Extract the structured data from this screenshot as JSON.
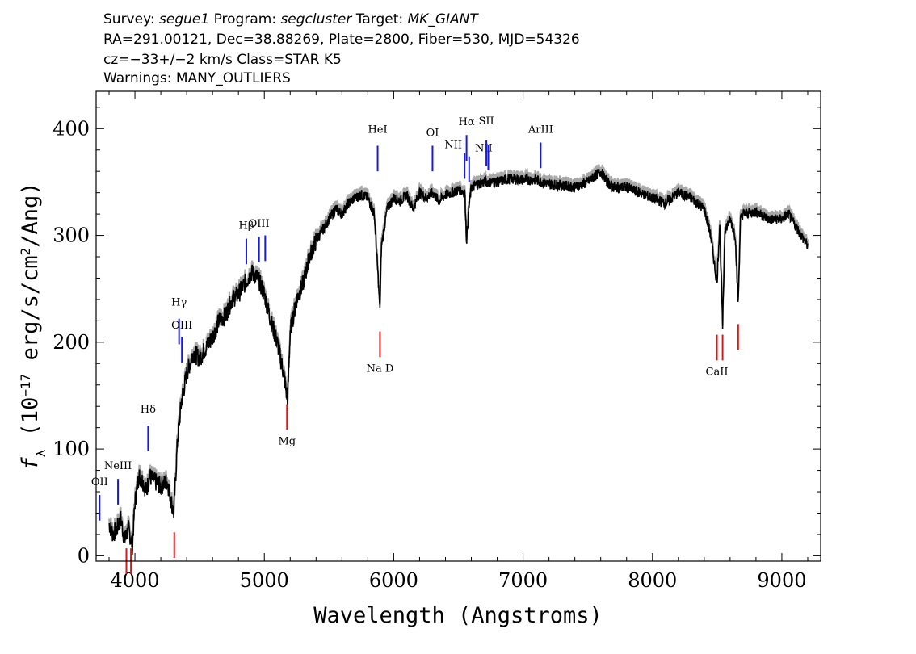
{
  "header": {
    "line1": "Survey: segue1 Program: segcluster Target: MK_GIANT",
    "line2": "RA=291.00121, Dec=38.88269, Plate=2800, Fiber=530, MJD=54326",
    "line3": "cz=−33+/−2 km/s Class=STAR K5",
    "line4": "Warnings: MANY_OUTLIERS"
  },
  "colors": {
    "emission": "#1a1ad6",
    "absorption": "#d61a1a",
    "flux": "#000000",
    "error": "#a8a8a8"
  },
  "chart_data": {
    "type": "line",
    "title": "",
    "xlabel": "Wavelength (Angstroms)",
    "ylabel": "f_λ (10^-17 erg/s/cm^2/Ang)",
    "xlim": [
      3700,
      9300
    ],
    "ylim": [
      -5,
      435
    ],
    "xticks": [
      4000,
      5000,
      6000,
      7000,
      8000,
      9000
    ],
    "yticks": [
      0,
      100,
      200,
      300,
      400
    ],
    "grid": false,
    "legend": "none",
    "series": [
      {
        "x": [
          3800,
          3830,
          3860,
          3890,
          3920,
          3950,
          3980,
          4000,
          4030,
          4060,
          4090,
          4110,
          4150,
          4200,
          4250,
          4300,
          4330,
          4360,
          4400,
          4450,
          4500,
          4550,
          4600,
          4650,
          4700,
          4750,
          4800,
          4850,
          4900,
          4950,
          5000,
          5050,
          5100,
          5150,
          5180,
          5200,
          5250,
          5300,
          5350,
          5400,
          5450,
          5500,
          5550,
          5600,
          5650,
          5700,
          5750,
          5800,
          5850,
          5880,
          5893,
          5905,
          5950,
          6000,
          6050,
          6100,
          6150,
          6200,
          6250,
          6300,
          6350,
          6400,
          6450,
          6500,
          6550,
          6563,
          6580,
          6600,
          6650,
          6700,
          6800,
          6900,
          7000,
          7100,
          7200,
          7300,
          7400,
          7500,
          7600,
          7650,
          7700,
          7800,
          7900,
          8000,
          8100,
          8200,
          8300,
          8400,
          8450,
          8498,
          8520,
          8542,
          8560,
          8600,
          8640,
          8662,
          8680,
          8700,
          8800,
          8900,
          9000,
          9050,
          9100,
          9150,
          9200
        ],
        "values": [
          30,
          20,
          25,
          35,
          15,
          25,
          10,
          50,
          75,
          70,
          60,
          75,
          70,
          65,
          70,
          40,
          110,
          145,
          170,
          190,
          185,
          195,
          205,
          220,
          225,
          240,
          245,
          255,
          265,
          260,
          245,
          220,
          200,
          170,
          145,
          210,
          240,
          255,
          280,
          295,
          305,
          315,
          325,
          320,
          330,
          335,
          338,
          335,
          320,
          260,
          230,
          290,
          325,
          335,
          332,
          338,
          325,
          340,
          335,
          340,
          332,
          338,
          340,
          343,
          340,
          295,
          325,
          345,
          348,
          350,
          350,
          353,
          352,
          352,
          348,
          347,
          345,
          350,
          360,
          350,
          345,
          345,
          340,
          335,
          330,
          340,
          335,
          325,
          300,
          255,
          310,
          215,
          305,
          315,
          300,
          235,
          315,
          320,
          322,
          315,
          315,
          320,
          310,
          300,
          290
        ]
      }
    ],
    "emission_lines": [
      {
        "label": "OII",
        "wavelength": 3727
      },
      {
        "label": "NeIII",
        "wavelength": 3869
      },
      {
        "label": "Hδ",
        "wavelength": 4102
      },
      {
        "label": "Hγ",
        "wavelength": 4341
      },
      {
        "label": "OIII",
        "wavelength": 4363
      },
      {
        "label": "Hβ",
        "wavelength": 4861
      },
      {
        "label": "OIII",
        "wavelength": 4959
      },
      {
        "label": "",
        "wavelength": 5007
      },
      {
        "label": "HeI",
        "wavelength": 5876
      },
      {
        "label": "OI",
        "wavelength": 6300
      },
      {
        "label": "NII",
        "wavelength": 6548
      },
      {
        "label": "Hα",
        "wavelength": 6563
      },
      {
        "label": "NII",
        "wavelength": 6583
      },
      {
        "label": "SII",
        "wavelength": 6716
      },
      {
        "label": "",
        "wavelength": 6731
      },
      {
        "label": "ArIII",
        "wavelength": 7136
      }
    ],
    "absorption_lines": [
      {
        "label": "",
        "wavelength": 3934
      },
      {
        "label": "",
        "wavelength": 3969
      },
      {
        "label": "",
        "wavelength": 4304
      },
      {
        "label": "Mg",
        "wavelength": 5175
      },
      {
        "label": "Na D",
        "wavelength": 5894
      },
      {
        "label": "CaII",
        "wavelength": 8498
      },
      {
        "label": "",
        "wavelength": 8542
      },
      {
        "label": "",
        "wavelength": 8662
      }
    ]
  }
}
